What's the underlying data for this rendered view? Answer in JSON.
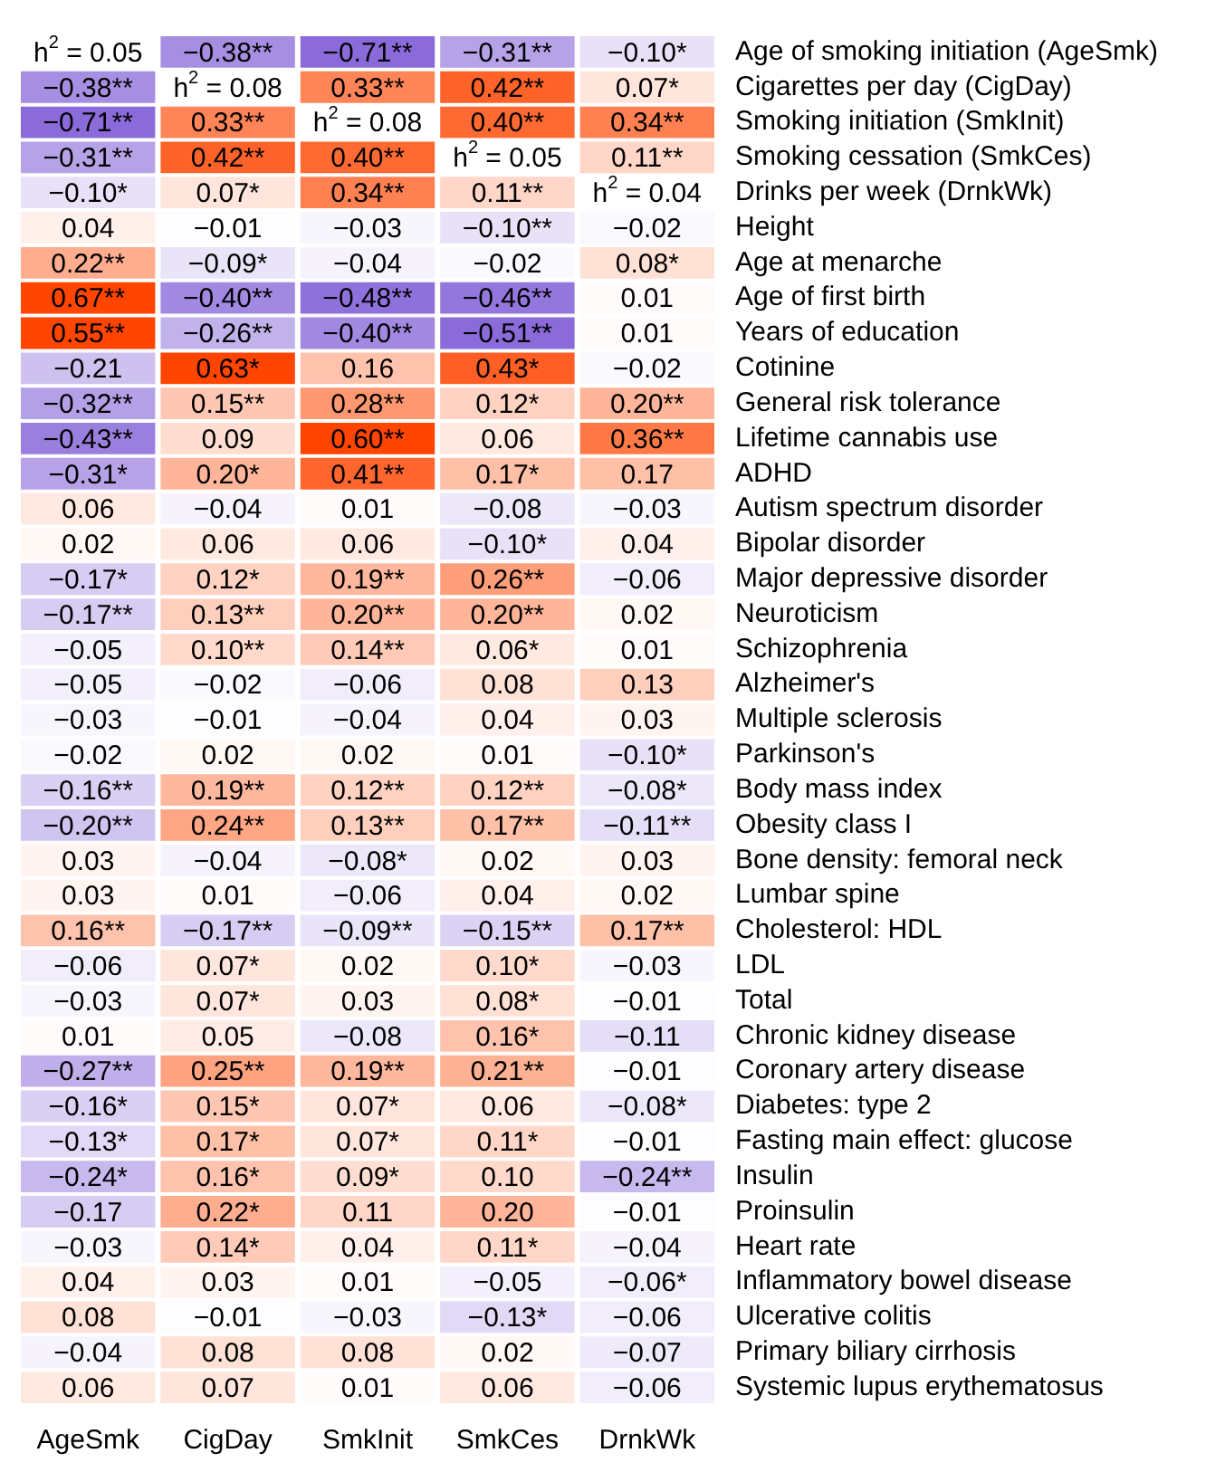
{
  "chart_data": {
    "type": "heatmap",
    "categories": [
      "AgeSmk",
      "CigDay",
      "SmkInit",
      "SmkCes",
      "DrnkWk"
    ],
    "y_categories": [
      "Age of smoking initiation (AgeSmk)",
      "Cigarettes per day (CigDay)",
      "Smoking initiation (SmkInit)",
      "Smoking cessation (SmkCes)",
      "Drinks per week (DrnkWk)",
      "Height",
      "Age at menarche",
      "Age of first birth",
      "Years of education",
      "Cotinine",
      "General risk tolerance",
      "Lifetime cannabis use",
      "ADHD",
      "Autism spectrum disorder",
      "Bipolar disorder",
      "Major depressive disorder",
      "Neuroticism",
      "Schizophrenia",
      "Alzheimer's",
      "Multiple sclerosis",
      "Parkinson's",
      "Body mass index",
      "Obesity class I",
      "Bone density: femoral neck",
      "Lumbar spine",
      "Cholesterol: HDL",
      "LDL",
      "Total",
      "Chronic kidney disease",
      "Coronary artery disease",
      "Diabetes: type 2",
      "Fasting main effect: glucose",
      "Insulin",
      "Proinsulin",
      "Heart rate",
      "Inflammatory bowel disease",
      "Ulcerative colitis",
      "Primary biliary cirrhosis",
      "Systemic lupus erythematosus"
    ],
    "cells": [
      [
        null,
        -0.38,
        -0.71,
        -0.31,
        -0.1
      ],
      [
        -0.38,
        null,
        0.33,
        0.42,
        0.07
      ],
      [
        -0.71,
        0.33,
        null,
        0.4,
        0.34
      ],
      [
        -0.31,
        0.42,
        0.4,
        null,
        0.11
      ],
      [
        -0.1,
        0.07,
        0.34,
        0.11,
        null
      ],
      [
        0.04,
        -0.01,
        -0.03,
        -0.1,
        -0.02
      ],
      [
        0.22,
        -0.09,
        -0.04,
        -0.02,
        0.08
      ],
      [
        0.67,
        -0.4,
        -0.48,
        -0.46,
        0.01
      ],
      [
        0.55,
        -0.26,
        -0.4,
        -0.51,
        0.01
      ],
      [
        -0.21,
        0.63,
        0.16,
        0.43,
        -0.02
      ],
      [
        -0.32,
        0.15,
        0.28,
        0.12,
        0.2
      ],
      [
        -0.43,
        0.09,
        0.6,
        0.06,
        0.36
      ],
      [
        -0.31,
        0.2,
        0.41,
        0.17,
        0.17
      ],
      [
        0.06,
        -0.04,
        0.01,
        -0.08,
        -0.03
      ],
      [
        0.02,
        0.06,
        0.06,
        -0.1,
        0.04
      ],
      [
        -0.17,
        0.12,
        0.19,
        0.26,
        -0.06
      ],
      [
        -0.17,
        0.13,
        0.2,
        0.2,
        0.02
      ],
      [
        -0.05,
        0.1,
        0.14,
        0.06,
        0.01
      ],
      [
        -0.05,
        -0.02,
        -0.06,
        0.08,
        0.13
      ],
      [
        -0.03,
        -0.01,
        -0.04,
        0.04,
        0.03
      ],
      [
        -0.02,
        0.02,
        0.02,
        0.01,
        -0.1
      ],
      [
        -0.16,
        0.19,
        0.12,
        0.12,
        -0.08
      ],
      [
        -0.2,
        0.24,
        0.13,
        0.17,
        -0.11
      ],
      [
        0.03,
        -0.04,
        -0.08,
        0.02,
        0.03
      ],
      [
        0.03,
        0.01,
        -0.06,
        0.04,
        0.02
      ],
      [
        0.16,
        -0.17,
        -0.09,
        -0.15,
        0.17
      ],
      [
        -0.06,
        0.07,
        0.02,
        0.1,
        -0.03
      ],
      [
        -0.03,
        0.07,
        0.03,
        0.08,
        -0.01
      ],
      [
        0.01,
        0.05,
        -0.08,
        0.16,
        -0.11
      ],
      [
        -0.27,
        0.25,
        0.19,
        0.21,
        -0.01
      ],
      [
        -0.16,
        0.15,
        0.07,
        0.06,
        -0.08
      ],
      [
        -0.13,
        0.17,
        0.07,
        0.11,
        -0.01
      ],
      [
        -0.24,
        0.16,
        0.09,
        0.1,
        -0.24
      ],
      [
        -0.17,
        0.22,
        0.11,
        0.2,
        -0.01
      ],
      [
        -0.03,
        0.14,
        0.04,
        0.11,
        -0.04
      ],
      [
        0.04,
        0.03,
        0.01,
        -0.05,
        -0.06
      ],
      [
        0.08,
        -0.01,
        -0.03,
        -0.13,
        -0.06
      ],
      [
        -0.04,
        0.08,
        0.08,
        0.02,
        -0.07
      ],
      [
        0.06,
        0.07,
        0.01,
        0.06,
        -0.06
      ]
    ],
    "cell_labels": [
      [
        "h$^{2}$ = 0.05",
        "−0.38**",
        "−0.71**",
        "−0.31**",
        "−0.10*"
      ],
      [
        "−0.38**",
        "h$^{2}$ = 0.08",
        "0.33**",
        "0.42**",
        "0.07*"
      ],
      [
        "−0.71**",
        "0.33**",
        "h$^{2}$ = 0.08",
        "0.40**",
        "0.34**"
      ],
      [
        "−0.31**",
        "0.42**",
        "0.40**",
        "h$^{2}$ = 0.05",
        "0.11**"
      ],
      [
        "−0.10*",
        "0.07*",
        "0.34**",
        "0.11**",
        "h$^{2}$ = 0.04"
      ],
      [
        "0.04",
        "−0.01",
        "−0.03",
        "−0.10**",
        "−0.02"
      ],
      [
        "0.22**",
        "−0.09*",
        "−0.04",
        "−0.02",
        "0.08*"
      ],
      [
        "0.67**",
        "−0.40**",
        "−0.48**",
        "−0.46**",
        "0.01"
      ],
      [
        "0.55**",
        "−0.26**",
        "−0.40**",
        "−0.51**",
        "0.01"
      ],
      [
        "−0.21",
        "0.63*",
        "0.16",
        "0.43*",
        "−0.02"
      ],
      [
        "−0.32**",
        "0.15**",
        "0.28**",
        "0.12*",
        "0.20**"
      ],
      [
        "−0.43**",
        "0.09",
        "0.60**",
        "0.06",
        "0.36**"
      ],
      [
        "−0.31*",
        "0.20*",
        "0.41**",
        "0.17*",
        "0.17"
      ],
      [
        "0.06",
        "−0.04",
        "0.01",
        "−0.08",
        "−0.03"
      ],
      [
        "0.02",
        "0.06",
        "0.06",
        "−0.10*",
        "0.04"
      ],
      [
        "−0.17*",
        "0.12*",
        "0.19**",
        "0.26**",
        "−0.06"
      ],
      [
        "−0.17**",
        "0.13**",
        "0.20**",
        "0.20**",
        "0.02"
      ],
      [
        "−0.05",
        "0.10**",
        "0.14**",
        "0.06*",
        "0.01"
      ],
      [
        "−0.05",
        "−0.02",
        "−0.06",
        "0.08",
        "0.13"
      ],
      [
        "−0.03",
        "−0.01",
        "−0.04",
        "0.04",
        "0.03"
      ],
      [
        "−0.02",
        "0.02",
        "0.02",
        "0.01",
        "−0.10*"
      ],
      [
        "−0.16**",
        "0.19**",
        "0.12**",
        "0.12**",
        "−0.08*"
      ],
      [
        "−0.20**",
        "0.24**",
        "0.13**",
        "0.17**",
        "−0.11**"
      ],
      [
        "0.03",
        "−0.04",
        "−0.08*",
        "0.02",
        "0.03"
      ],
      [
        "0.03",
        "0.01",
        "−0.06",
        "0.04",
        "0.02"
      ],
      [
        "0.16**",
        "−0.17**",
        "−0.09**",
        "−0.15**",
        "0.17**"
      ],
      [
        "−0.06",
        "0.07*",
        "0.02",
        "0.10*",
        "−0.03"
      ],
      [
        "−0.03",
        "0.07*",
        "0.03",
        "0.08*",
        "−0.01"
      ],
      [
        "0.01",
        "0.05",
        "−0.08",
        "0.16*",
        "−0.11"
      ],
      [
        "−0.27**",
        "0.25**",
        "0.19**",
        "0.21**",
        "−0.01"
      ],
      [
        "−0.16*",
        "0.15*",
        "0.07*",
        "0.06",
        "−0.08*"
      ],
      [
        "−0.13*",
        "0.17*",
        "0.07*",
        "0.11*",
        "−0.01"
      ],
      [
        "−0.24*",
        "0.16*",
        "0.09*",
        "0.10",
        "−0.24**"
      ],
      [
        "−0.17",
        "0.22*",
        "0.11",
        "0.20",
        "−0.01"
      ],
      [
        "−0.03",
        "0.14*",
        "0.04",
        "0.11*",
        "−0.04"
      ],
      [
        "0.04",
        "0.03",
        "0.01",
        "−0.05",
        "−0.06*"
      ],
      [
        "0.08",
        "−0.01",
        "−0.03",
        "−0.13*",
        "−0.06"
      ],
      [
        "−0.04",
        "0.08",
        "0.08",
        "0.02",
        "−0.07"
      ],
      [
        "0.06",
        "0.07",
        "0.01",
        "0.06",
        "−0.06"
      ]
    ]
  }
}
